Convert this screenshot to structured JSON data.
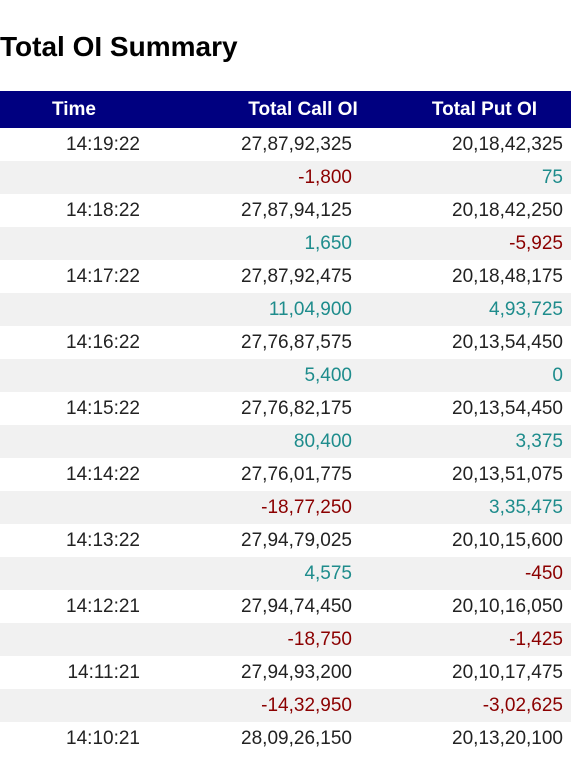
{
  "title": "Total OI Summary",
  "columns": {
    "time": "Time",
    "call": "Total Call OI",
    "put": "Total Put OI"
  },
  "rows": [
    {
      "time": "14:19:22",
      "call": "27,87,92,325",
      "put": "20,18,42,325",
      "call_change": "-1,800",
      "put_change": "75"
    },
    {
      "time": "14:18:22",
      "call": "27,87,94,125",
      "put": "20,18,42,250",
      "call_change": "1,650",
      "put_change": "-5,925"
    },
    {
      "time": "14:17:22",
      "call": "27,87,92,475",
      "put": "20,18,48,175",
      "call_change": "11,04,900",
      "put_change": "4,93,725"
    },
    {
      "time": "14:16:22",
      "call": "27,76,87,575",
      "put": "20,13,54,450",
      "call_change": "5,400",
      "put_change": "0"
    },
    {
      "time": "14:15:22",
      "call": "27,76,82,175",
      "put": "20,13,54,450",
      "call_change": "80,400",
      "put_change": "3,375"
    },
    {
      "time": "14:14:22",
      "call": "27,76,01,775",
      "put": "20,13,51,075",
      "call_change": "-18,77,250",
      "put_change": "3,35,475"
    },
    {
      "time": "14:13:22",
      "call": "27,94,79,025",
      "put": "20,10,15,600",
      "call_change": "4,575",
      "put_change": "-450"
    },
    {
      "time": "14:12:21",
      "call": "27,94,74,450",
      "put": "20,10,16,050",
      "call_change": "-18,750",
      "put_change": "-1,425"
    },
    {
      "time": "14:11:21",
      "call": "27,94,93,200",
      "put": "20,10,17,475",
      "call_change": "-14,32,950",
      "put_change": "-3,02,625"
    },
    {
      "time": "14:10:21",
      "call": "28,09,26,150",
      "put": "20,13,20,100"
    }
  ],
  "colors": {
    "header_bg": "#000080",
    "positive": "#1e8c8c",
    "negative": "#8b0000",
    "alt_row": "#f1f1f1"
  }
}
